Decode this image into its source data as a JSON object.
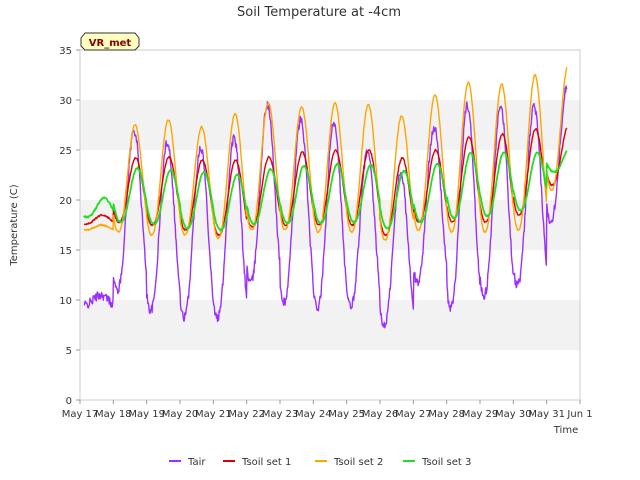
{
  "chart_data": {
    "type": "line",
    "title": "Soil Temperature at -4cm",
    "xlabel": "Time",
    "ylabel": "Temperature (C)",
    "ylim": [
      0,
      35
    ],
    "yticks": [
      0,
      5,
      10,
      15,
      20,
      25,
      30,
      35
    ],
    "xlim": [
      "2024-05-17",
      "2024-06-01"
    ],
    "x_tick_labels": [
      "May 17",
      "May 18",
      "May 19",
      "May 20",
      "May 21",
      "May 22",
      "May 23",
      "May 24",
      "May 25",
      "May 26",
      "May 27",
      "May 28",
      "May 29",
      "May 30",
      "May 31",
      "Jun 1"
    ],
    "grid": "horizontal alternating bands",
    "legend_position": "bottom",
    "badge": "VR_met",
    "days": [
      "May 17",
      "May 18",
      "May 19",
      "May 20",
      "May 21",
      "May 22",
      "May 23",
      "May 24",
      "May 25",
      "May 26",
      "May 27",
      "May 28",
      "May 29",
      "May 30",
      "May 31"
    ],
    "series": [
      {
        "name": "Tair",
        "color": "#9b30ff",
        "daily_min": [
          9.5,
          11.0,
          9.0,
          8.3,
          8.2,
          11.8,
          9.8,
          9.2,
          9.4,
          7.5,
          11.8,
          9.3,
          10.5,
          11.5,
          18.0
        ],
        "daily_max": [
          10.5,
          27.0,
          25.8,
          25.3,
          26.2,
          29.5,
          28.0,
          27.8,
          24.8,
          22.8,
          27.3,
          29.5,
          29.3,
          29.3,
          31.5
        ]
      },
      {
        "name": "Tsoil set 1",
        "color": "#dd0000",
        "daily_min": [
          17.6,
          17.8,
          17.5,
          17.0,
          16.5,
          17.3,
          17.5,
          17.5,
          17.5,
          16.5,
          17.8,
          17.8,
          17.8,
          18.5,
          21.5
        ],
        "daily_max": [
          18.5,
          24.2,
          24.3,
          24.0,
          24.0,
          24.3,
          24.8,
          25.0,
          25.0,
          24.2,
          25.0,
          26.3,
          26.6,
          27.1,
          27.6
        ]
      },
      {
        "name": "Tsoil set 2",
        "color": "#ffa500",
        "daily_min": [
          17.0,
          16.8,
          16.5,
          16.5,
          16.2,
          17.0,
          17.0,
          16.8,
          16.8,
          16.0,
          17.0,
          16.8,
          16.8,
          17.0,
          21.0
        ],
        "daily_max": [
          17.5,
          27.5,
          28.0,
          27.3,
          28.6,
          29.7,
          29.3,
          29.7,
          29.5,
          28.4,
          30.5,
          31.8,
          31.6,
          32.5,
          33.6
        ]
      },
      {
        "name": "Tsoil set 3",
        "color": "#22dd22",
        "daily_min": [
          18.3,
          17.8,
          17.6,
          17.2,
          17.0,
          17.6,
          17.7,
          17.7,
          17.8,
          17.2,
          17.8,
          18.2,
          18.4,
          19.0,
          22.8
        ],
        "daily_max": [
          20.2,
          23.2,
          23.0,
          22.8,
          22.5,
          23.1,
          23.4,
          23.6,
          23.5,
          22.9,
          23.6,
          24.7,
          24.8,
          24.7,
          25.3
        ]
      }
    ]
  }
}
